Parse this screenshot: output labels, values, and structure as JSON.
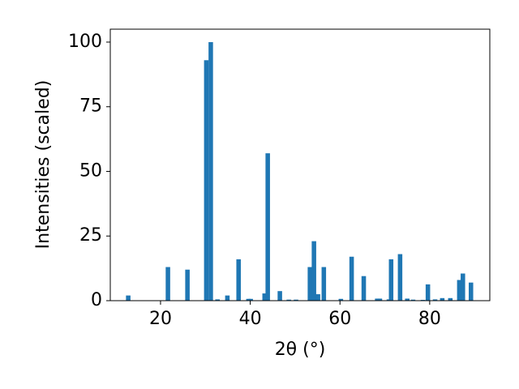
{
  "chart_data": {
    "type": "bar",
    "xlabel": "2θ (°)",
    "ylabel": "Intensities (scaled)",
    "x": [
      12.8,
      21.65,
      26.0,
      30.2,
      31.2,
      32.7,
      34.9,
      37.4,
      39.6,
      40.1,
      43.2,
      43.9,
      46.6,
      48.6,
      50.2,
      53.3,
      54.2,
      55.1,
      56.4,
      60.2,
      62.6,
      65.3,
      68.3,
      68.9,
      70.9,
      71.4,
      73.4,
      75.0,
      76.3,
      78.5,
      79.6,
      81.2,
      82.8,
      84.6,
      86.6,
      87.4,
      89.2
    ],
    "values": [
      2,
      13,
      12,
      93,
      100,
      0.5,
      2,
      16,
      0.7,
      0.7,
      2.8,
      57,
      3.7,
      0.4,
      0.4,
      13,
      23,
      2.5,
      13,
      0.7,
      17,
      9.5,
      0.8,
      0.8,
      0.5,
      16,
      18,
      0.8,
      0.4,
      0.3,
      6.3,
      0.5,
      1,
      1,
      8,
      10.5,
      7
    ],
    "bar_width": 1,
    "color": "#1f77b4",
    "xlim": [
      8.8,
      93.4
    ],
    "xticks": [
      20,
      40,
      60,
      80
    ],
    "ylim": [
      0,
      105
    ],
    "yticks": [
      0,
      25,
      50,
      75,
      100
    ]
  }
}
